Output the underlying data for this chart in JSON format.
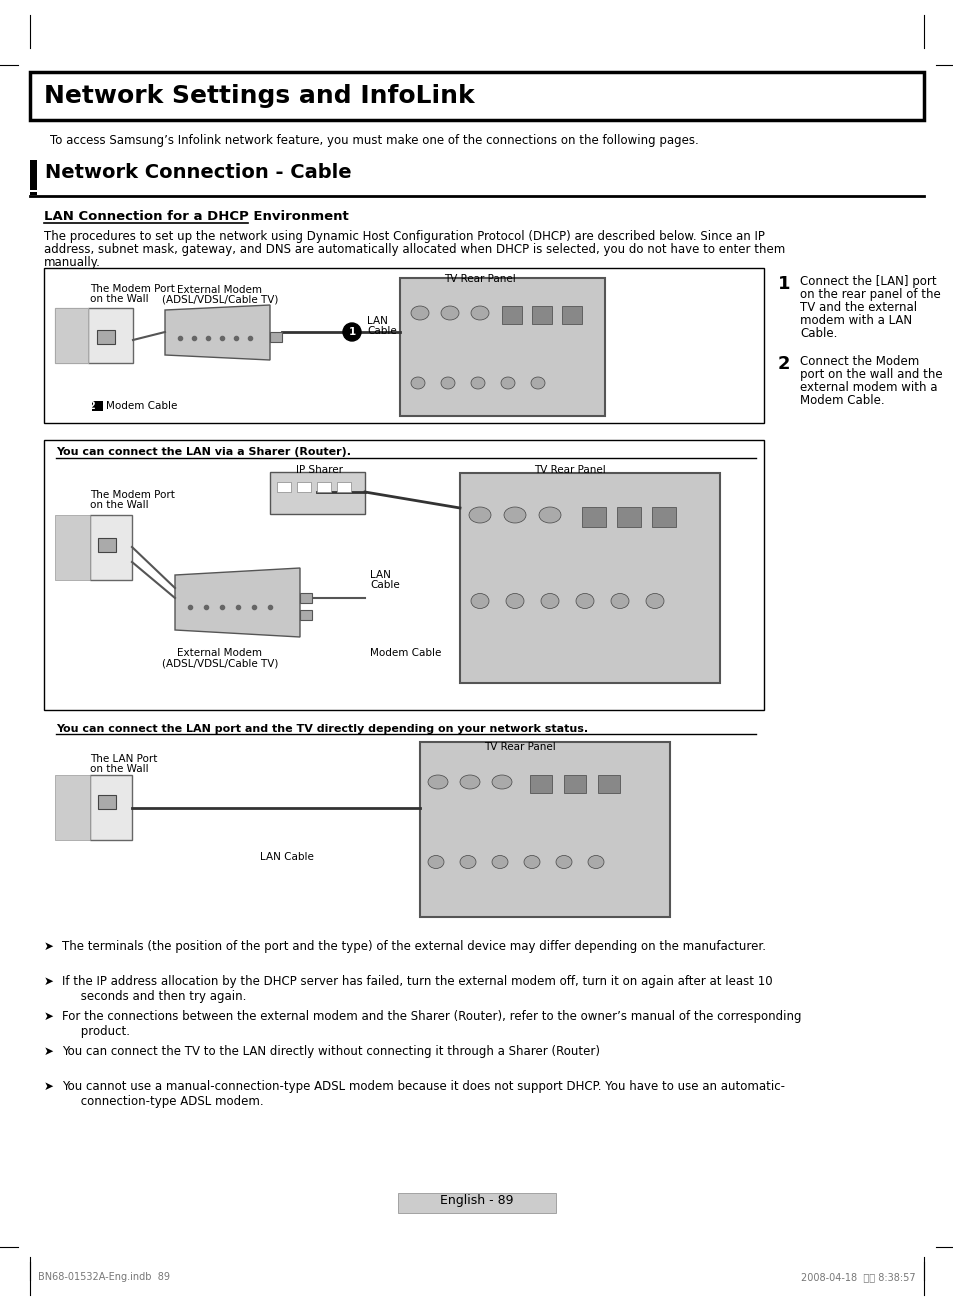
{
  "page_bg": "#ffffff",
  "main_title": "Network Settings and InfoLink",
  "section_title": "Network Connection - Cable",
  "subsection_title": "LAN Connection for a DHCP Environment",
  "intro_text": "To access Samsung’s Infolink network feature, you must make one of the connections on the following pages.",
  "body_line1": "The procedures to set up the network using Dynamic Host Configuration Protocol (DHCP) are described below. Since an IP",
  "body_line2": "address, subnet mask, gateway, and DNS are automatically allocated when DHCP is selected, you do not have to enter them",
  "body_line3": "manually.",
  "step1_lines": [
    "Connect the [LAN] port",
    "on the rear panel of the",
    "TV and the external",
    "modem with a LAN",
    "Cable."
  ],
  "step2_lines": [
    "Connect the Modem",
    "port on the wall and the",
    "external modem with a",
    "Modem Cable."
  ],
  "router_note": "You can connect the LAN via a Sharer (Router).",
  "direct_note": "You can connect the LAN port and the TV directly depending on your network status.",
  "bullets": [
    "The terminals (the position of the port and the type) of the external device may differ depending on the manufacturer.",
    "If the IP address allocation by the DHCP server has failed, turn the external modem off, turn it on again after at least 10\n     seconds and then try again.",
    "For the connections between the external modem and the Sharer (Router), refer to the owner’s manual of the corresponding\n     product.",
    "You can connect the TV to the LAN directly without connecting it through a Sharer (Router)",
    "You cannot use a manual-connection-type ADSL modem because it does not support DHCP. You have to use an automatic-\n     connection-type ADSL modem."
  ],
  "page_number": "English - 89",
  "footer_left": "BN68-01532A-Eng.indb  89",
  "footer_right": "2008-04-18  오후 8:38:57"
}
